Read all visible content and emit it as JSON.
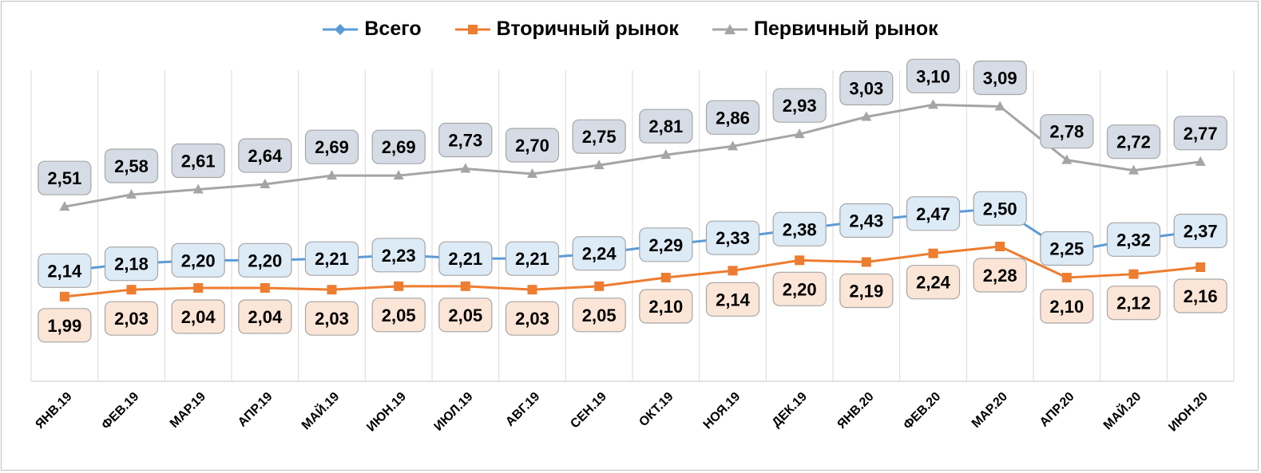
{
  "chart_data": {
    "type": "line",
    "title": "",
    "xlabel": "",
    "ylabel": "",
    "ylim": [
      1.5,
      3.3
    ],
    "grid": "vertical",
    "legend_position": "top",
    "categories": [
      "ЯНВ.19",
      "ФЕВ.19",
      "МАР.19",
      "АПР.19",
      "МАЙ.19",
      "ИЮН.19",
      "ИЮЛ.19",
      "АВГ.19",
      "СЕН.19",
      "ОКТ.19",
      "НОЯ.19",
      "ДЕК.19",
      "ЯНВ.20",
      "ФЕВ.20",
      "МАР.20",
      "АПР.20",
      "МАЙ.20",
      "ИЮН.20"
    ],
    "series": [
      {
        "name": "Всего",
        "color": "#5b9bd5",
        "label_fill": "#ddebf7",
        "marker": "diamond",
        "values": [
          2.14,
          2.18,
          2.2,
          2.2,
          2.21,
          2.23,
          2.21,
          2.21,
          2.24,
          2.29,
          2.33,
          2.38,
          2.43,
          2.47,
          2.5,
          2.25,
          2.32,
          2.37
        ],
        "labels": [
          "2,14",
          "2,18",
          "2,20",
          "2,20",
          "2,21",
          "2,23",
          "2,21",
          "2,21",
          "2,24",
          "2,29",
          "2,33",
          "2,38",
          "2,43",
          "2,47",
          "2,50",
          "2,25",
          "2,32",
          "2,37"
        ]
      },
      {
        "name": "Вторичный рынок",
        "color": "#ed7d31",
        "label_fill": "#fbe5d6",
        "marker": "square",
        "values": [
          1.99,
          2.03,
          2.04,
          2.04,
          2.03,
          2.05,
          2.05,
          2.03,
          2.05,
          2.1,
          2.14,
          2.2,
          2.19,
          2.24,
          2.28,
          2.1,
          2.12,
          2.16
        ],
        "labels": [
          "1,99",
          "2,03",
          "2,04",
          "2,04",
          "2,03",
          "2,05",
          "2,05",
          "2,03",
          "2,05",
          "2,10",
          "2,14",
          "2,20",
          "2,19",
          "2,24",
          "2,28",
          "2,10",
          "2,12",
          "2,16"
        ]
      },
      {
        "name": "Первичный рынок",
        "color": "#a5a5a5",
        "label_fill": "#d6dce5",
        "marker": "triangle",
        "values": [
          2.51,
          2.58,
          2.61,
          2.64,
          2.69,
          2.69,
          2.73,
          2.7,
          2.75,
          2.81,
          2.86,
          2.93,
          3.03,
          3.1,
          3.09,
          2.78,
          2.72,
          2.77
        ],
        "labels": [
          "2,51",
          "2,58",
          "2,61",
          "2,64",
          "2,69",
          "2,69",
          "2,73",
          "2,70",
          "2,75",
          "2,81",
          "2,86",
          "2,93",
          "3,03",
          "3,10",
          "3,09",
          "2,78",
          "2,72",
          "2,77"
        ]
      }
    ]
  }
}
